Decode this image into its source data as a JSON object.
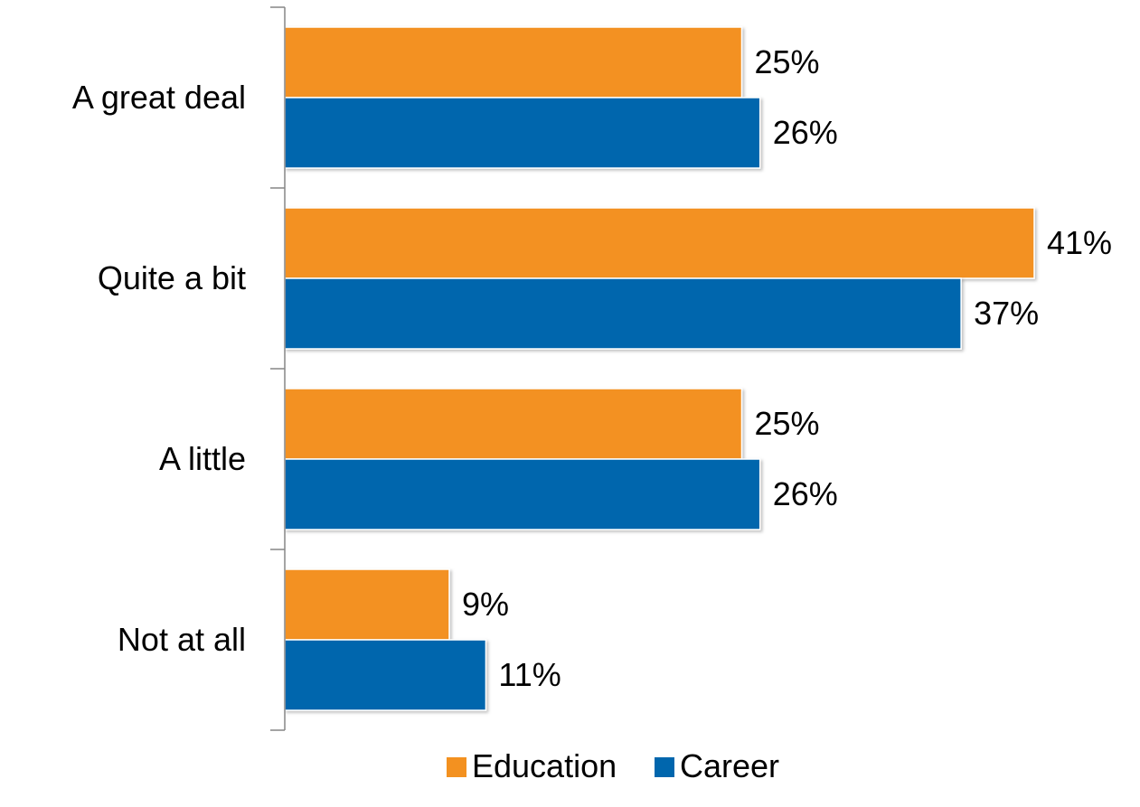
{
  "chart_data": {
    "type": "bar",
    "orientation": "horizontal",
    "title": "",
    "xlabel": "",
    "ylabel": "",
    "categories": [
      "A great deal",
      "Quite a bit",
      "A little",
      "Not at all"
    ],
    "series": [
      {
        "name": "Education",
        "color": "#F39120",
        "values": [
          25,
          41,
          25,
          9
        ],
        "labels": [
          "25%",
          "41%",
          "25%",
          "9%"
        ]
      },
      {
        "name": "Career",
        "color": "#0066AD",
        "values": [
          26,
          37,
          26,
          11
        ],
        "labels": [
          "26%",
          "37%",
          "26%",
          "11%"
        ]
      }
    ],
    "xlim": [
      0,
      41
    ],
    "unit": "%",
    "grid": false,
    "legend_position": "bottom"
  }
}
